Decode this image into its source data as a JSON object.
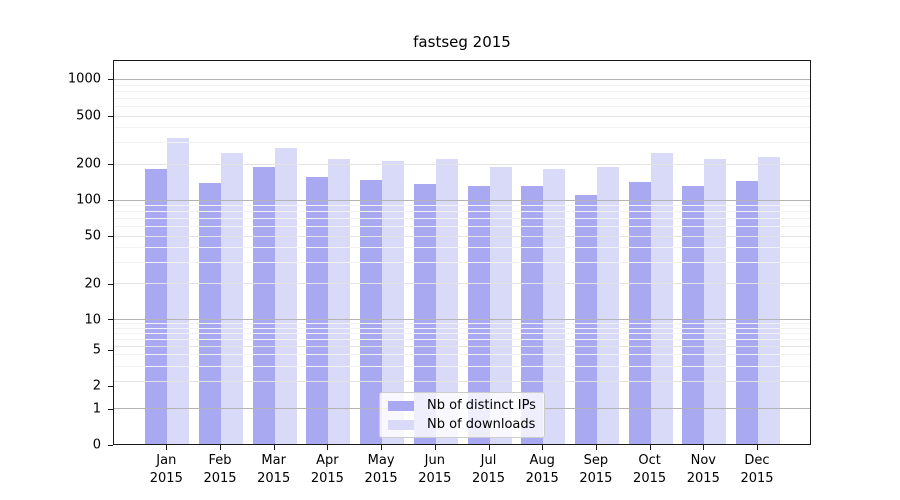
{
  "title": "fastseg 2015",
  "colors": {
    "distinct_ips": "#a9a9f2",
    "downloads": "#d9d9f8",
    "grid_major": "#b4b4b4",
    "grid_mid": "#e3e3e3",
    "grid_minor": "#f2f2f2",
    "spine": "#1a1a1a"
  },
  "chart_data": {
    "type": "bar",
    "title": "fastseg 2015",
    "categories": [
      "Jan",
      "Feb",
      "Mar",
      "Apr",
      "May",
      "Jun",
      "Jul",
      "Aug",
      "Sep",
      "Oct",
      "Nov",
      "Dec"
    ],
    "category_year": "2015",
    "series": [
      {
        "name": "Nb of distinct IPs",
        "color": "#a9a9f2",
        "values": [
          184,
          139,
          188,
          157,
          149,
          136,
          132,
          131,
          110,
          141,
          132,
          146
        ]
      },
      {
        "name": "Nb of downloads",
        "color": "#d9d9f8",
        "values": [
          330,
          248,
          274,
          222,
          212,
          219,
          190,
          184,
          191,
          246,
          222,
          228
        ]
      }
    ],
    "yscale": "symlog",
    "y_ticks": [
      0,
      1,
      2,
      5,
      10,
      20,
      50,
      100,
      200,
      500,
      1000
    ],
    "y_tick_pct": {
      "0": 100,
      "1": 90.77,
      "2": 84.79,
      "5": 75.42,
      "10": 67.49,
      "20": 58.26,
      "50": 45.77,
      "100": 36.41,
      "200": 27.05,
      "500": 14.56,
      "1000": 4.94
    },
    "xlabel": "",
    "ylabel": "",
    "grid": true,
    "legend_position": "lower center"
  }
}
